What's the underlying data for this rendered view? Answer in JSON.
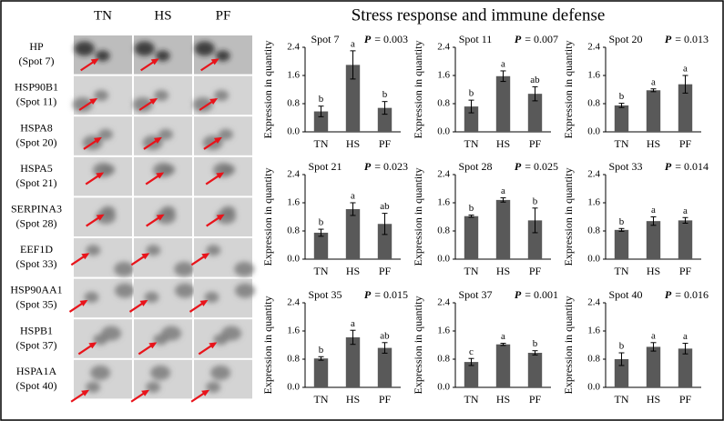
{
  "title": "Stress response and immune defense",
  "gel": {
    "columns": [
      "TN",
      "HS",
      "PF"
    ],
    "rows": [
      {
        "protein": "HP",
        "spot": "(Spot 7)"
      },
      {
        "protein": "HSP90B1",
        "spot": "(Spot 11)"
      },
      {
        "protein": "HSPA8",
        "spot": "(Spot 20)"
      },
      {
        "protein": "HSPA5",
        "spot": "(Spot 21)"
      },
      {
        "protein": "SERPINA3",
        "spot": "(Spot 28)"
      },
      {
        "protein": "EEF1D",
        "spot": "(Spot 33)"
      },
      {
        "protein": "HSP90AA1",
        "spot": "(Spot 35)"
      },
      {
        "protein": "HSPB1",
        "spot": "(Spot 37)"
      },
      {
        "protein": "HSPA1A",
        "spot": "(Spot 40)"
      }
    ]
  },
  "chart_data": [
    {
      "type": "bar",
      "title": "Spot 7",
      "p_symbol": "P",
      "p_text": "= 0.003",
      "ylabel": "Expression in quantity",
      "categories": [
        "TN",
        "HS",
        "PF"
      ],
      "values": [
        0.58,
        1.9,
        0.68
      ],
      "errors": [
        0.15,
        0.4,
        0.18
      ],
      "letters": [
        "b",
        "a",
        "b"
      ],
      "color": "#595959",
      "ylim": [
        0,
        2.4
      ],
      "yticks": [
        {
          "value": 0,
          "label": "0.0"
        },
        0.8,
        1.6,
        2.4
      ]
    },
    {
      "type": "bar",
      "title": "Spot 11",
      "p_symbol": "P",
      "p_text": "= 0.007",
      "ylabel": "Expression in quantity",
      "categories": [
        "TN",
        "HS",
        "PF"
      ],
      "values": [
        0.72,
        1.58,
        1.08
      ],
      "errors": [
        0.18,
        0.15,
        0.2
      ],
      "letters": [
        "b",
        "a",
        "ab"
      ],
      "color": "#595959",
      "ylim": [
        0,
        2.4
      ],
      "yticks": [
        {
          "value": 0,
          "label": "0.0"
        },
        0.8,
        1.6,
        2.4
      ]
    },
    {
      "type": "bar",
      "title": "Spot 20",
      "p_symbol": "P",
      "p_text": "= 0.013",
      "ylabel": "Expression in quantity",
      "categories": [
        "TN",
        "HS",
        "PF"
      ],
      "values": [
        0.75,
        1.18,
        1.35
      ],
      "errors": [
        0.06,
        0.04,
        0.25
      ],
      "letters": [
        "b",
        "a",
        "a"
      ],
      "color": "#595959",
      "ylim": [
        0,
        2.4
      ],
      "yticks": [
        {
          "value": 0,
          "label": "0.0"
        },
        0.8,
        1.6,
        2.4
      ]
    },
    {
      "type": "bar",
      "title": "Spot 21",
      "p_symbol": "P",
      "p_text": "= 0.023",
      "ylabel": "Expression in quantity",
      "categories": [
        "TN",
        "HS",
        "PF"
      ],
      "values": [
        0.75,
        1.42,
        1.0
      ],
      "errors": [
        0.1,
        0.18,
        0.3
      ],
      "letters": [
        "b",
        "a",
        "ab"
      ],
      "color": "#595959",
      "ylim": [
        0,
        2.4
      ],
      "yticks": [
        {
          "value": 0,
          "label": "0.0"
        },
        0.8,
        1.6,
        2.4
      ]
    },
    {
      "type": "bar",
      "title": "Spot 28",
      "p_symbol": "P",
      "p_text": "= 0.025",
      "ylabel": "Expression in quantity",
      "categories": [
        "TN",
        "HS",
        "PF"
      ],
      "values": [
        1.22,
        1.68,
        1.1
      ],
      "errors": [
        0.03,
        0.06,
        0.35
      ],
      "letters": [
        "b",
        "a",
        "b"
      ],
      "color": "#595959",
      "ylim": [
        0,
        2.4
      ],
      "yticks": [
        {
          "value": 0,
          "label": "0.0"
        },
        0.8,
        1.6,
        2.4
      ]
    },
    {
      "type": "bar",
      "title": "Spot 33",
      "p_symbol": "P",
      "p_text": "= 0.014",
      "ylabel": "Expression in quantity",
      "categories": [
        "TN",
        "HS",
        "PF"
      ],
      "values": [
        0.83,
        1.08,
        1.1
      ],
      "errors": [
        0.04,
        0.12,
        0.08
      ],
      "letters": [
        "b",
        "a",
        "a"
      ],
      "color": "#595959",
      "ylim": [
        0,
        2.4
      ],
      "yticks": [
        {
          "value": 0,
          "label": "0.0"
        },
        0.8,
        1.6,
        2.4
      ]
    },
    {
      "type": "bar",
      "title": "Spot 35",
      "p_symbol": "P",
      "p_text": "= 0.015",
      "ylabel": "Expression in quantity",
      "categories": [
        "TN",
        "HS",
        "PF"
      ],
      "values": [
        0.82,
        1.42,
        1.12
      ],
      "errors": [
        0.05,
        0.2,
        0.15
      ],
      "letters": [
        "b",
        "a",
        "ab"
      ],
      "color": "#595959",
      "ylim": [
        0,
        2.4
      ],
      "yticks": [
        {
          "value": 0,
          "label": "0.0"
        },
        0.8,
        1.6,
        2.4
      ]
    },
    {
      "type": "bar",
      "title": "Spot 37",
      "p_symbol": "P",
      "p_text": "= 0.001",
      "ylabel": "Expression in quantity",
      "categories": [
        "TN",
        "HS",
        "PF"
      ],
      "values": [
        0.72,
        1.22,
        0.98
      ],
      "errors": [
        0.1,
        0.03,
        0.06
      ],
      "letters": [
        "c",
        "a",
        "b"
      ],
      "color": "#595959",
      "ylim": [
        0,
        2.4
      ],
      "yticks": [
        {
          "value": 0,
          "label": "0.0"
        },
        0.8,
        1.6,
        2.4
      ]
    },
    {
      "type": "bar",
      "title": "Spot 40",
      "p_symbol": "P",
      "p_text": "= 0.016",
      "ylabel": "Expression in quantity",
      "categories": [
        "TN",
        "HS",
        "PF"
      ],
      "values": [
        0.8,
        1.15,
        1.1
      ],
      "errors": [
        0.18,
        0.12,
        0.15
      ],
      "letters": [
        "b",
        "a",
        "a"
      ],
      "color": "#595959",
      "ylim": [
        0,
        2.4
      ],
      "yticks": [
        {
          "value": 0,
          "label": "0.0"
        },
        0.8,
        1.6,
        2.4
      ]
    }
  ]
}
